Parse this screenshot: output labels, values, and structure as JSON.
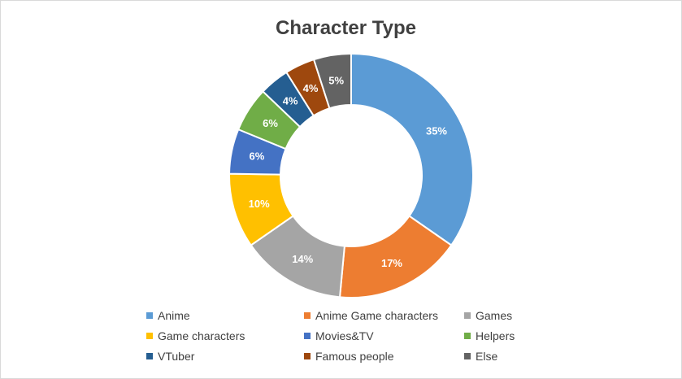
{
  "chart_data": {
    "type": "pie",
    "variant": "donut",
    "title": "Character Type",
    "categories": [
      "Anime",
      "Anime Game characters",
      "Games",
      "Game characters",
      "Movies&TV",
      "Helpers",
      "VTuber",
      "Famous people",
      "Else"
    ],
    "values": [
      35,
      17,
      14,
      10,
      6,
      6,
      4,
      4,
      5
    ],
    "labels": [
      "35%",
      "17%",
      "14%",
      "10%",
      "6%",
      "6%",
      "4%",
      "4%",
      "5%"
    ],
    "colors": [
      "#5b9bd5",
      "#ed7d31",
      "#a5a5a5",
      "#ffc000",
      "#4472c4",
      "#70ad47",
      "#255e91",
      "#9e480e",
      "#636363"
    ],
    "legend_position": "bottom"
  }
}
